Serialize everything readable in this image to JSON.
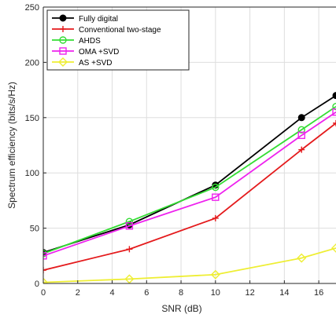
{
  "chart_data": {
    "type": "line",
    "title": "",
    "xlabel": "SNR (dB)",
    "ylabel": "Spectrum efficiency (bits/s/Hz)",
    "xlim": [
      0,
      17
    ],
    "ylim": [
      0,
      250
    ],
    "xticks": [
      0,
      2,
      4,
      6,
      8,
      10,
      12,
      14,
      16
    ],
    "yticks": [
      0,
      50,
      100,
      150,
      200,
      250
    ],
    "grid": true,
    "legend_location": "top-left",
    "x": [
      0,
      5,
      10,
      15,
      17
    ],
    "series": [
      {
        "name": "Fully digital",
        "color": "#000000",
        "marker": "filled-circle",
        "values": [
          28,
          53,
          89,
          150,
          170
        ]
      },
      {
        "name": "Conventional two-stage",
        "color": "#e41a1c",
        "marker": "plus",
        "values": [
          12,
          31,
          59,
          121,
          145
        ]
      },
      {
        "name": "AHDS",
        "color": "#33dd33",
        "marker": "circle",
        "values": [
          27,
          56,
          87,
          139,
          160
        ]
      },
      {
        "name": "OMA +SVD",
        "color": "#ee22ee",
        "marker": "square",
        "values": [
          25,
          52,
          78,
          134,
          155
        ]
      },
      {
        "name": "AS +SVD",
        "color": "#eeee33",
        "marker": "diamond",
        "values": [
          1,
          4,
          8,
          23,
          32
        ]
      }
    ]
  }
}
